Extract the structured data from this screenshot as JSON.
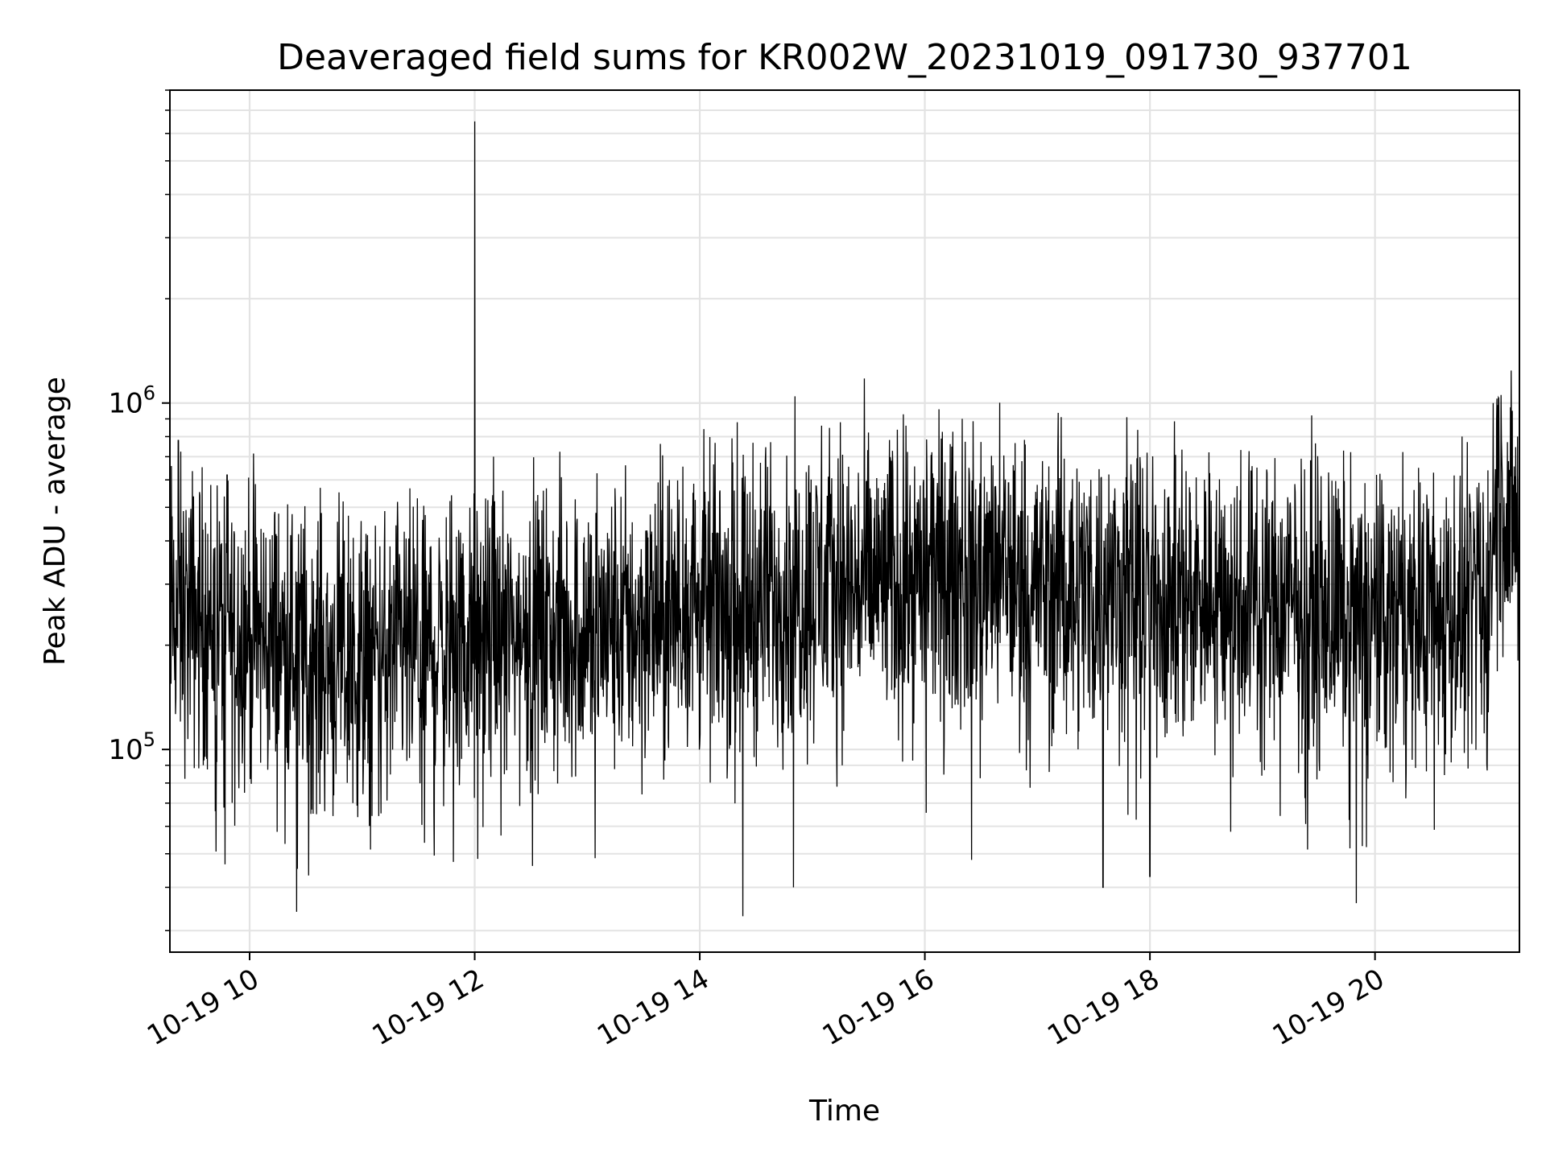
{
  "chart_data": {
    "type": "line",
    "title": "Deaveraged field sums for KR002W_20231019_091730_937701",
    "xlabel": "Time",
    "ylabel": "Peak ADU - average",
    "yscale": "log",
    "ylim": [
      26000,
      8000000
    ],
    "xlim": [
      "2023-10-19T09:17:30",
      "2023-10-19T21:17:00"
    ],
    "grid": true,
    "line_color": "#000000",
    "x_tick_labels": [
      "10-19 10",
      "10-19 12",
      "10-19 14",
      "10-19 16",
      "10-19 18",
      "10-19 20"
    ],
    "x_ticks": [
      "2023-10-19T10:00",
      "2023-10-19T12:00",
      "2023-10-19T14:00",
      "2023-10-19T16:00",
      "2023-10-19T18:00",
      "2023-10-19T20:00"
    ],
    "y_tick_labels": [
      {
        "base": "10",
        "exp": "5"
      },
      {
        "base": "10",
        "exp": "6"
      }
    ],
    "y_ticks": [
      100000,
      1000000
    ],
    "series": [
      {
        "points": [
          [
            "2023-10-19T09:17:30",
            250000
          ],
          [
            "2023-10-19T09:45:00",
            230000
          ],
          [
            "2023-10-19T10:30:00",
            190000
          ],
          [
            "2023-10-19T11:00:00",
            170000
          ],
          [
            "2023-10-19T11:30:00",
            190000
          ],
          [
            "2023-10-19T12:00:00",
            6500000
          ],
          [
            "2023-10-19T12:00:30",
            200000
          ],
          [
            "2023-10-19T12:30:00",
            215000
          ],
          [
            "2023-10-19T13:00:00",
            220000
          ],
          [
            "2023-10-19T13:30:00",
            230000
          ],
          [
            "2023-10-19T14:00:00",
            260000
          ],
          [
            "2023-10-19T14:30:00",
            270000
          ],
          [
            "2023-10-19T15:00:00",
            290000
          ],
          [
            "2023-10-19T15:30:00",
            300000
          ],
          [
            "2023-10-19T16:00:00",
            310000
          ],
          [
            "2023-10-19T16:30:00",
            320000
          ],
          [
            "2023-10-19T17:00:00",
            300000
          ],
          [
            "2023-10-19T17:30:00",
            290000
          ],
          [
            "2023-10-19T18:00:00",
            280000
          ],
          [
            "2023-10-19T18:30:00",
            285000
          ],
          [
            "2023-10-19T19:00:00",
            270000
          ],
          [
            "2023-10-19T19:30:00",
            250000
          ],
          [
            "2023-10-19T20:00:00",
            240000
          ],
          [
            "2023-10-19T20:30:00",
            235000
          ],
          [
            "2023-10-19T21:00:00",
            245000
          ],
          [
            "2023-10-19T21:05:00",
            550000
          ],
          [
            "2023-10-19T21:17:00",
            380000
          ]
        ],
        "peaks": [
          [
            "2023-10-19T09:22:00",
            780000
          ],
          [
            "2023-10-19T09:48:00",
            620000
          ],
          [
            "2023-10-19T10:25:00",
            34000
          ],
          [
            "2023-10-19T12:10:00",
            700000
          ],
          [
            "2023-10-19T14:20:00",
            880000
          ],
          [
            "2023-10-19T14:23:00",
            33000
          ],
          [
            "2023-10-19T14:50:00",
            40000
          ],
          [
            "2023-10-19T15:05:00",
            860000
          ],
          [
            "2023-10-19T15:15:00",
            880000
          ],
          [
            "2023-10-19T15:50:00",
            860000
          ],
          [
            "2023-10-19T16:20:00",
            900000
          ],
          [
            "2023-10-19T16:25:00",
            48000
          ],
          [
            "2023-10-19T17:35:00",
            40000
          ],
          [
            "2023-10-19T18:00:00",
            43000
          ],
          [
            "2023-10-19T19:50:00",
            36000
          ],
          [
            "2023-10-19T21:03:00",
            1000000
          ],
          [
            "2023-10-19T21:05:00",
            1030000
          ]
        ]
      }
    ]
  }
}
